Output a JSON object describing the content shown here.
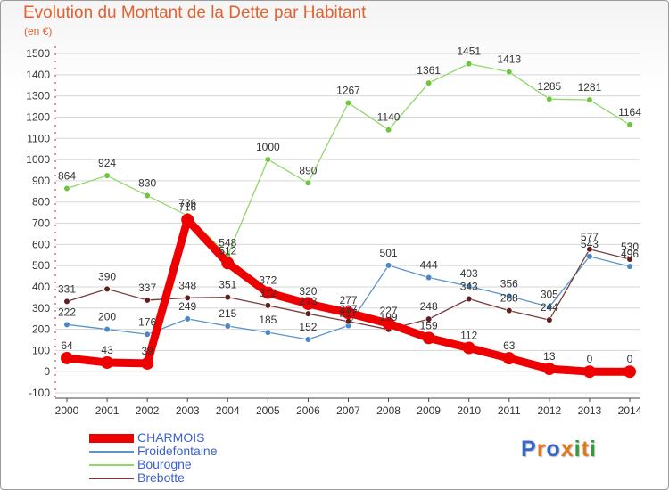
{
  "title": "Evolution du Montant de la Dette par Habitant",
  "subtitle": "(en €)",
  "logo_text": "Proxiti",
  "colors": {
    "title": "#e06230",
    "legend_text": "#3d5fd1",
    "grid": "#d7d7d7",
    "axis": "#444444",
    "logo": [
      "#3566c9",
      "#e07a21",
      "#3566c9",
      "#e07a21",
      "#2f9d3a",
      "#e07a21",
      "#2f9d3a"
    ]
  },
  "chart_data": {
    "type": "line",
    "title": "Evolution du Montant de la Dette par Habitant",
    "subtitle": "(en €)",
    "xlabel": "",
    "ylabel": "",
    "x": [
      2000,
      2001,
      2002,
      2003,
      2004,
      2005,
      2006,
      2007,
      2008,
      2009,
      2010,
      2011,
      2012,
      2013,
      2014
    ],
    "ylim": [
      -100,
      1500
    ],
    "yticks": [
      -100,
      0,
      100,
      200,
      300,
      400,
      500,
      600,
      700,
      800,
      900,
      1000,
      1100,
      1200,
      1300,
      1400,
      1500
    ],
    "grid": true,
    "legend_position": "bottom-left",
    "series": [
      {
        "name": "Froidefontaine",
        "color": "#5b94cc",
        "marker": "#4a86c8",
        "values": [
          222,
          200,
          176,
          249,
          215,
          185,
          152,
          217,
          501,
          444,
          403,
          356,
          305,
          543,
          496
        ],
        "labels": [
          "222",
          "200",
          "176",
          "249",
          "215",
          "185",
          "152",
          "217",
          "501",
          "444",
          "403",
          "356",
          "305",
          "543",
          "496"
        ]
      },
      {
        "name": "Bourogne",
        "color": "#8fd86a",
        "marker": "#6fc53d",
        "values": [
          864,
          924,
          830,
          736,
          548,
          1000,
          890,
          1267,
          1140,
          1361,
          1451,
          1413,
          1285,
          1281,
          1164
        ],
        "labels": [
          "864",
          "924",
          "830",
          "736",
          "548",
          "1000",
          "890",
          "1267",
          "1140",
          "1361",
          "1451",
          "1413",
          "1285",
          "1281",
          "1164"
        ]
      },
      {
        "name": "Brebotte",
        "color": "#7a3b3b",
        "marker": "#5e1f1f",
        "values": [
          331,
          390,
          337,
          348,
          351,
          312,
          273,
          237,
          199,
          248,
          343,
          288,
          244,
          577,
          530
        ],
        "labels": [
          "331",
          "390",
          "337",
          "348",
          "351",
          "312",
          "273",
          "237",
          "199",
          "248",
          "343",
          "288",
          "244",
          "577",
          "530"
        ]
      },
      {
        "name": "CHARMOIS",
        "color": "#ee0000",
        "marker": "#ee0000",
        "values": [
          64,
          43,
          39,
          716,
          512,
          372,
          320,
          277,
          227,
          159,
          112,
          63,
          13,
          0,
          0
        ],
        "labels": [
          "64",
          "43",
          "39",
          "716",
          "512",
          "372",
          "320",
          "277",
          "227",
          "159",
          "112",
          "63",
          "13",
          "0",
          "0"
        ]
      }
    ],
    "legend_order": [
      "CHARMOIS",
      "Froidefontaine",
      "Bourogne",
      "Brebotte"
    ]
  },
  "legend": [
    {
      "label": "CHARMOIS",
      "color": "#ee0000"
    },
    {
      "label": "Froidefontaine",
      "color": "#5b94cc"
    },
    {
      "label": "Bourogne",
      "color": "#8fd86a"
    },
    {
      "label": "Brebotte",
      "color": "#7a3b3b"
    }
  ]
}
